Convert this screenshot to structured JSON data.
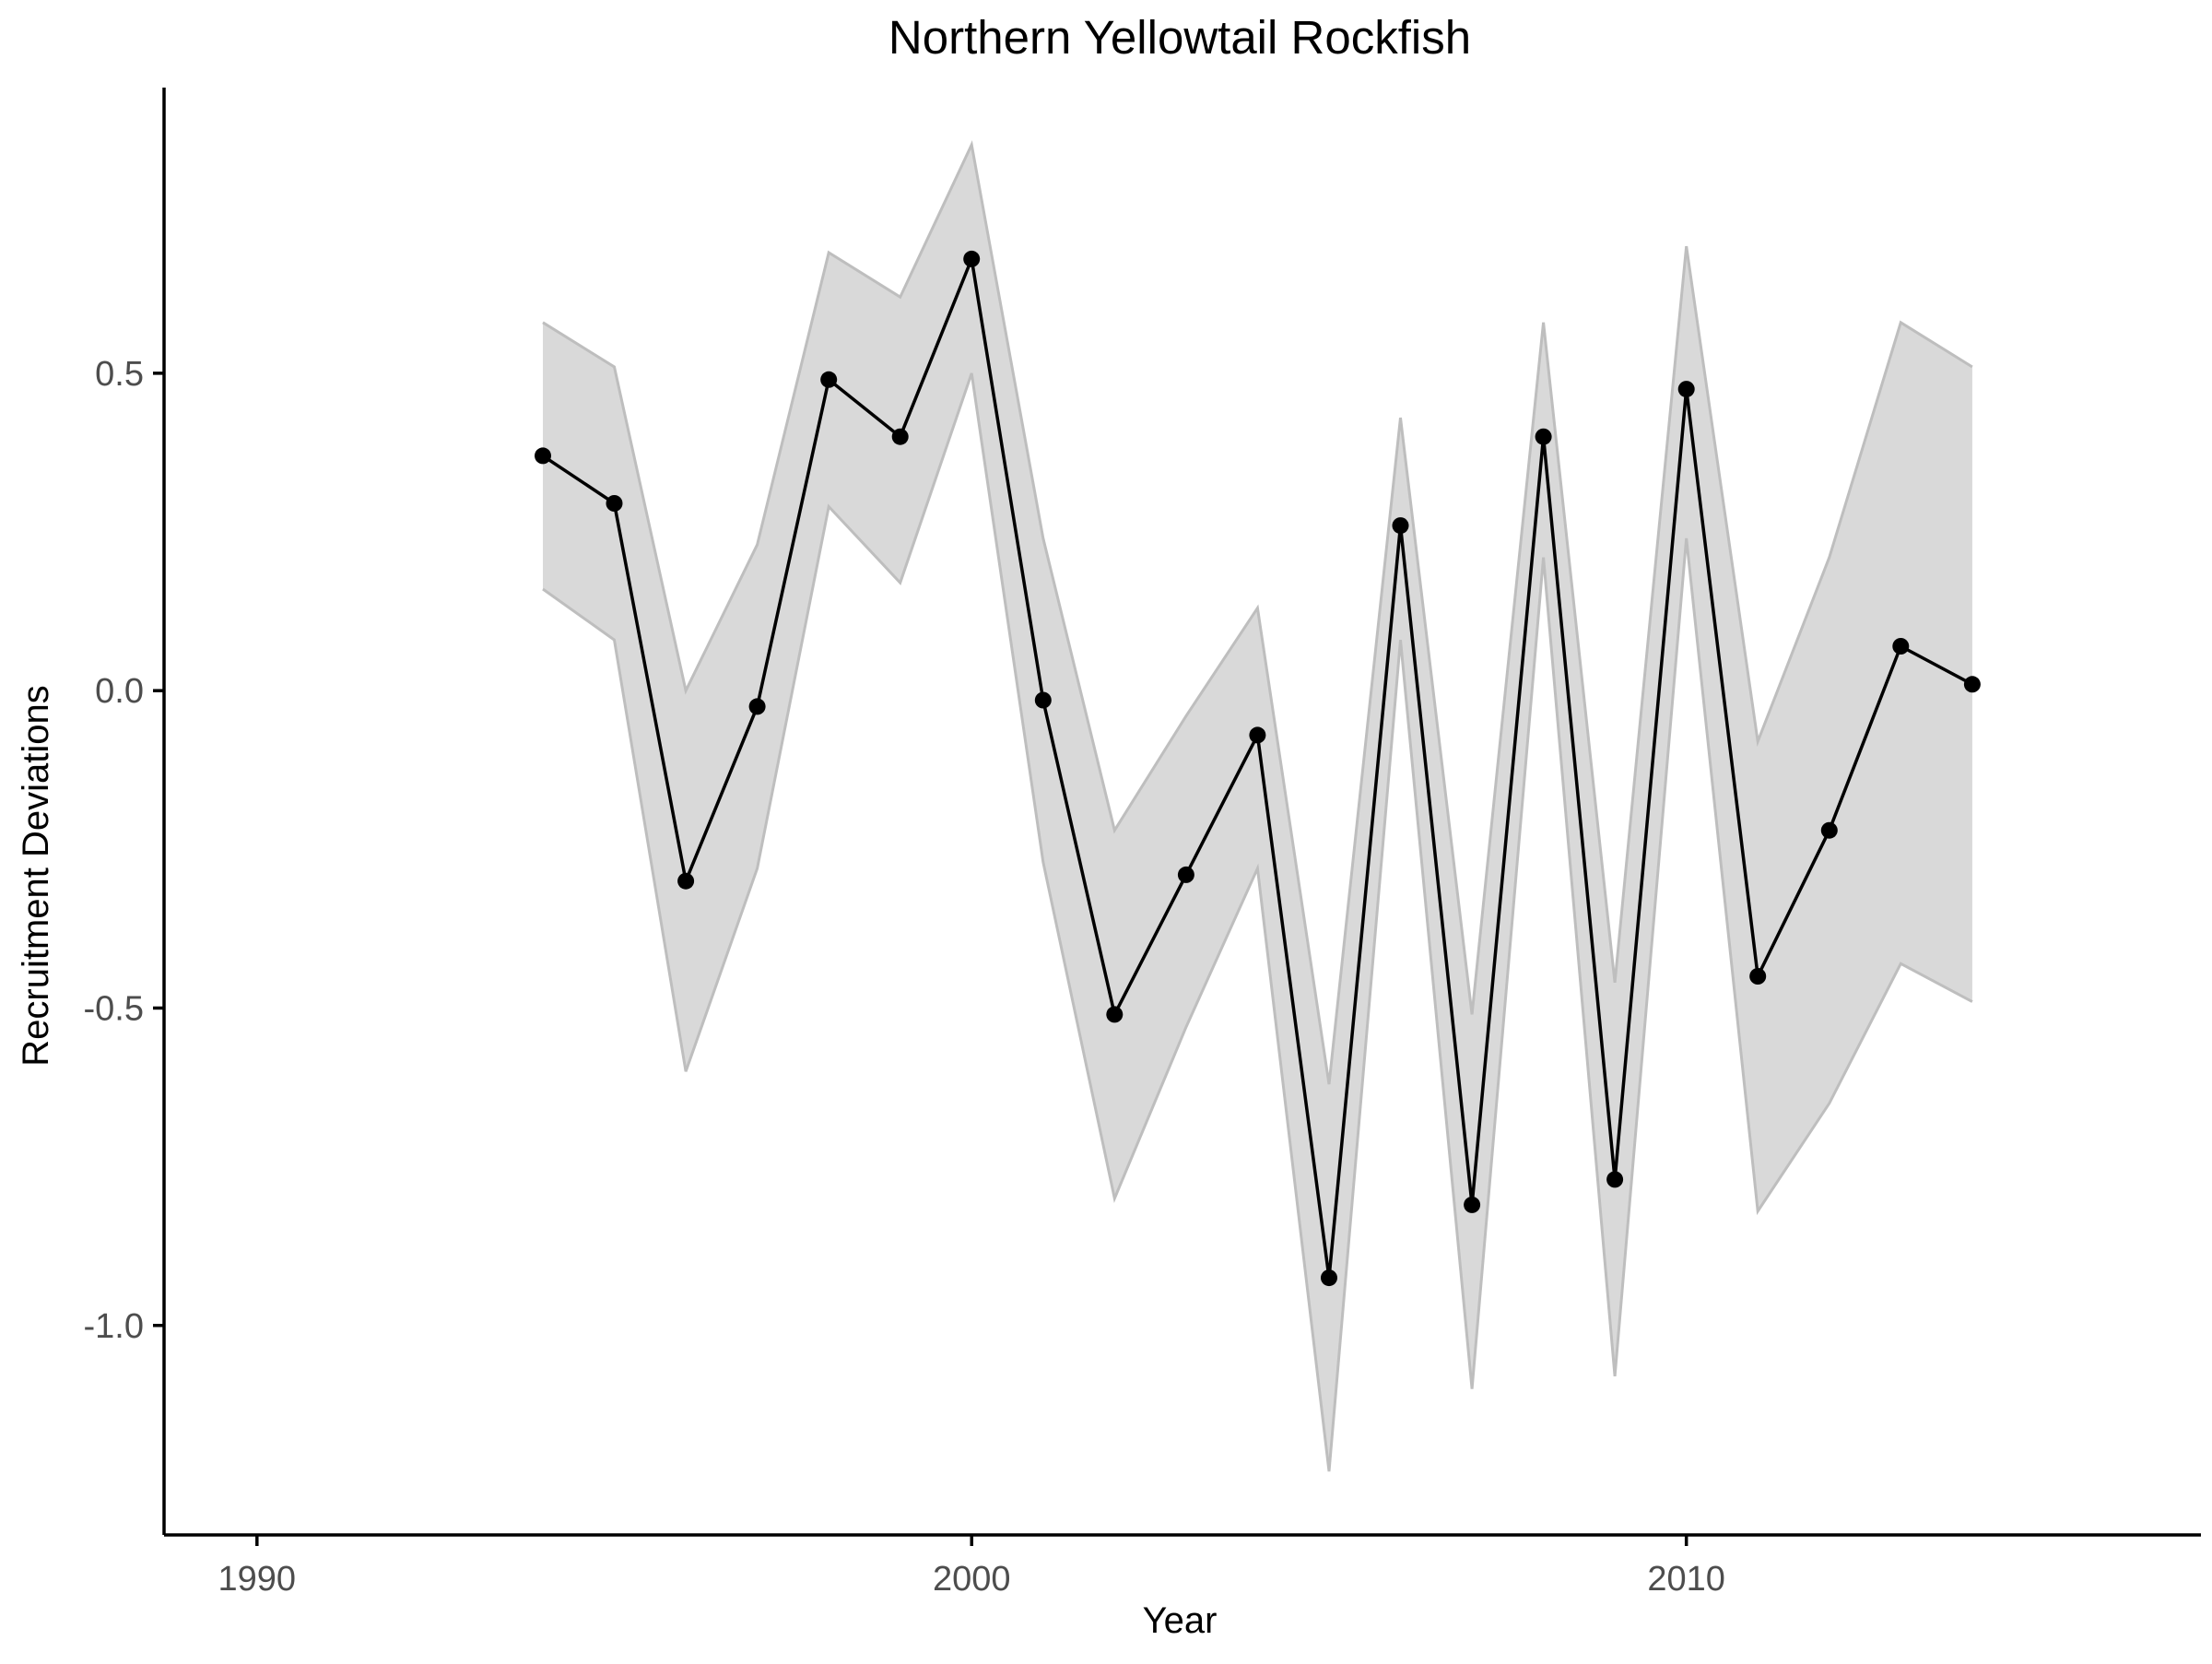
{
  "chart_data": {
    "type": "line",
    "title": "Northern Yellowtail Rockfish",
    "xlabel": "Year",
    "ylabel": "Recruitment Deviations",
    "xlim": [
      1988.7,
      2017.2
    ],
    "ylim": [
      -1.33,
      0.95
    ],
    "x_ticks": [
      1990,
      2000,
      2010
    ],
    "x_tick_labels": [
      "1990",
      "2000",
      "2010"
    ],
    "y_ticks": [
      0.5,
      0.0,
      -0.5,
      -1.0
    ],
    "y_tick_labels": [
      "0.5",
      "0.0",
      "-0.5",
      "-1.0"
    ],
    "grid": false,
    "legend": "none",
    "colors": {
      "line": "#000000",
      "band_fill": "#d9d9d9",
      "band_stroke": "#bebebe",
      "axis": "#000000",
      "tick_label": "#4d4d4d"
    },
    "x": [
      1994,
      1995,
      1996,
      1997,
      1998,
      1999,
      2000,
      2001,
      2002,
      2003,
      2004,
      2005,
      2006,
      2007,
      2008,
      2009,
      2010,
      2011,
      2012,
      2013,
      2014
    ],
    "series": [
      {
        "values": [
          0.37,
          0.295,
          -0.3,
          -0.025,
          0.49,
          0.4,
          0.68,
          -0.015,
          -0.51,
          -0.29,
          -0.07,
          -0.925,
          0.26,
          -0.81,
          0.4,
          -0.77,
          0.475,
          -0.45,
          -0.22,
          0.07,
          0.01
        ]
      }
    ],
    "interval_lower": [
      0.16,
      0.08,
      -0.6,
      -0.28,
      0.29,
      0.17,
      0.5,
      -0.27,
      -0.8,
      -0.53,
      -0.28,
      -1.23,
      0.08,
      -1.1,
      0.21,
      -1.08,
      0.24,
      -0.82,
      -0.65,
      -0.43,
      -0.49
    ],
    "interval_upper": [
      0.58,
      0.51,
      0.0,
      0.23,
      0.69,
      0.62,
      0.86,
      0.24,
      -0.22,
      -0.04,
      0.13,
      -0.62,
      0.43,
      -0.51,
      0.58,
      -0.46,
      0.7,
      -0.08,
      0.21,
      0.58,
      0.51
    ]
  }
}
